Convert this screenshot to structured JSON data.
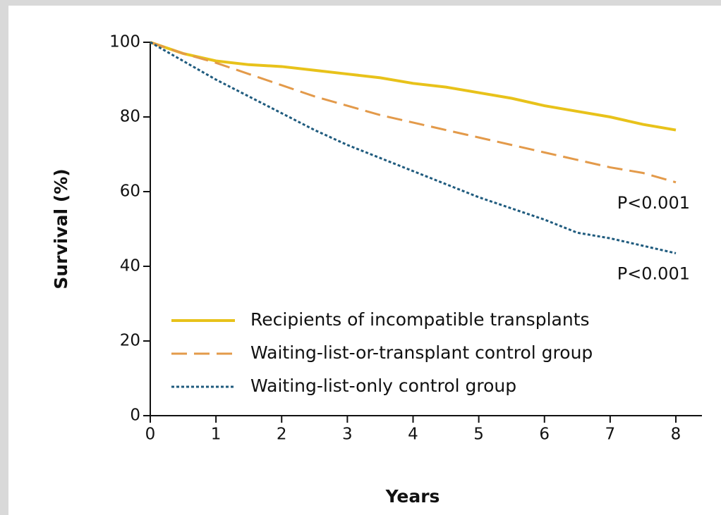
{
  "chart_data": {
    "type": "line",
    "x": [
      0,
      0.5,
      1,
      1.5,
      2,
      2.5,
      3,
      3.5,
      4,
      4.5,
      5,
      5.5,
      6,
      6.5,
      7,
      7.5,
      8
    ],
    "series": [
      {
        "name": "Recipients of incompatible transplants",
        "color": "#e8c21a",
        "style": "solid",
        "values": [
          100,
          97,
          95,
          94,
          93.5,
          92.5,
          91.5,
          90.5,
          89,
          88,
          86.5,
          85,
          83,
          81.5,
          80,
          78,
          76.5
        ]
      },
      {
        "name": "Waiting-list-or-transplant control group",
        "color": "#e39a4a",
        "style": "dashed",
        "values": [
          100,
          97,
          94.5,
          91.5,
          88.5,
          85.5,
          83,
          80.5,
          78.5,
          76.5,
          74.5,
          72.5,
          70.5,
          68.5,
          66.5,
          65,
          62.5
        ]
      },
      {
        "name": "Waiting-list-only control group",
        "color": "#1f5b7e",
        "style": "dotted",
        "values": [
          100,
          95,
          90,
          85.5,
          81,
          76.5,
          72.5,
          69,
          65.5,
          62,
          58.5,
          55.5,
          52.5,
          49,
          47.5,
          45.5,
          43.5
        ]
      }
    ],
    "annotations": [
      "P<0.001",
      "P<0.001"
    ],
    "xlabel": "Years",
    "ylabel": "Survival (%)",
    "xlim": [
      0,
      8
    ],
    "xticks": [
      0,
      1,
      2,
      3,
      4,
      5,
      6,
      7,
      8
    ],
    "ylim": [
      0,
      100
    ],
    "yticks": [
      0,
      20,
      40,
      60,
      80,
      100
    ],
    "legend": "lower left",
    "grid": false
  }
}
